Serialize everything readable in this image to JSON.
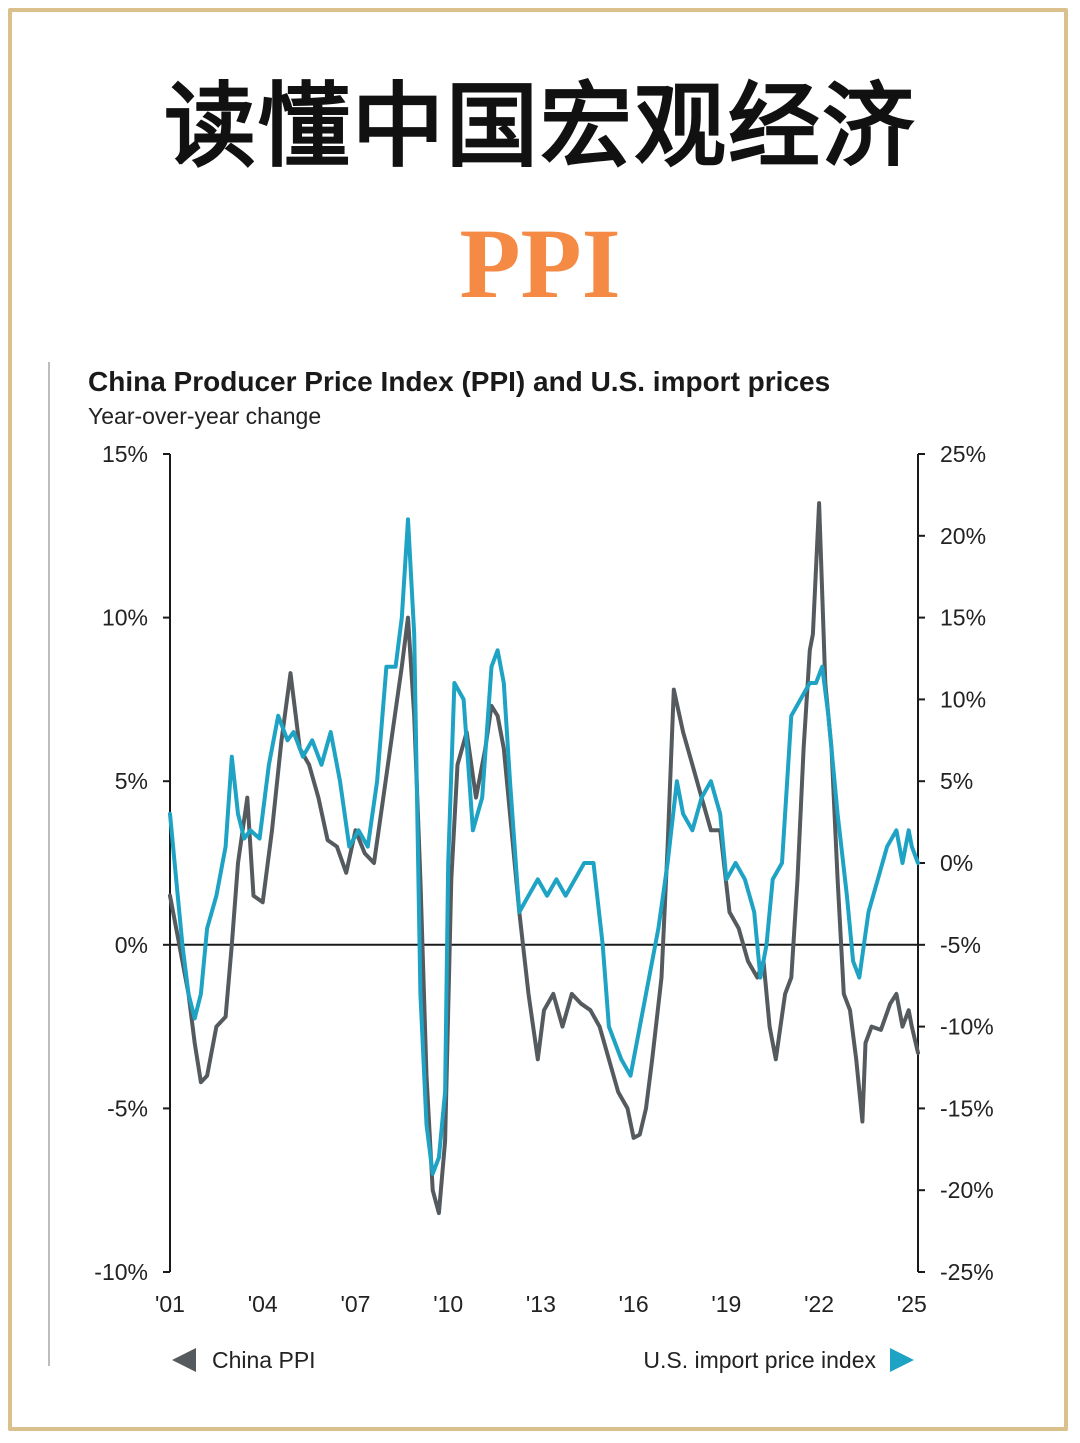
{
  "header": {
    "title": "读懂中国宏观经济",
    "subtitle": "PPI"
  },
  "colors": {
    "frame": "#d9c08c",
    "subtitle": "#f58a45",
    "china_ppi": "#555a5e",
    "us_import": "#1ea3c4"
  },
  "chart_data": {
    "type": "line",
    "title": "China Producer Price Index (PPI) and U.S. import prices",
    "subtitle": "Year-over-year change",
    "x_ticks": [
      "'01",
      "'04",
      "'07",
      "'10",
      "'13",
      "'16",
      "'19",
      "'22",
      "'25"
    ],
    "xlim": [
      2001.0,
      2025.2
    ],
    "left_axis": {
      "ylim": [
        -10,
        15
      ],
      "ticks": [
        "15%",
        "10%",
        "5%",
        "0%",
        "-5%",
        "-10%"
      ],
      "tick_values": [
        15,
        10,
        5,
        0,
        -5,
        -10
      ]
    },
    "right_axis": {
      "ylim": [
        -25,
        25
      ],
      "ticks": [
        "25%",
        "20%",
        "15%",
        "10%",
        "5%",
        "0%",
        "-5%",
        "-10%",
        "-15%",
        "-20%",
        "-25%"
      ],
      "tick_values": [
        25,
        20,
        15,
        10,
        5,
        0,
        -5,
        -10,
        -15,
        -20,
        -25
      ]
    },
    "legend": {
      "left": "China PPI",
      "right": "U.S. import price index"
    },
    "series": [
      {
        "name": "China PPI",
        "axis": "left",
        "x": [
          2001.0,
          2001.3,
          2001.6,
          2001.8,
          2002.0,
          2002.2,
          2002.5,
          2002.8,
          2003.0,
          2003.2,
          2003.5,
          2003.7,
          2004.0,
          2004.3,
          2004.6,
          2004.9,
          2005.2,
          2005.5,
          2005.8,
          2006.1,
          2006.4,
          2006.7,
          2007.0,
          2007.3,
          2007.6,
          2007.9,
          2008.2,
          2008.5,
          2008.7,
          2008.9,
          2009.1,
          2009.3,
          2009.5,
          2009.7,
          2009.9,
          2010.1,
          2010.3,
          2010.6,
          2010.9,
          2011.2,
          2011.4,
          2011.6,
          2011.8,
          2012.0,
          2012.3,
          2012.6,
          2012.9,
          2013.1,
          2013.4,
          2013.7,
          2014.0,
          2014.3,
          2014.6,
          2014.9,
          2015.2,
          2015.5,
          2015.8,
          2016.0,
          2016.2,
          2016.4,
          2016.6,
          2016.9,
          2017.1,
          2017.3,
          2017.6,
          2017.9,
          2018.2,
          2018.5,
          2018.8,
          2019.1,
          2019.4,
          2019.7,
          2020.0,
          2020.2,
          2020.4,
          2020.6,
          2020.9,
          2021.1,
          2021.3,
          2021.5,
          2021.7,
          2021.8,
          2022.0,
          2022.2,
          2022.4,
          2022.6,
          2022.8,
          2023.0,
          2023.2,
          2023.4,
          2023.5,
          2023.7,
          2024.0,
          2024.3,
          2024.5,
          2024.7,
          2024.9,
          2025.0,
          2025.2
        ],
        "values": [
          1.5,
          0.0,
          -1.5,
          -3.0,
          -4.2,
          -4.0,
          -2.5,
          -2.2,
          0.0,
          2.5,
          4.5,
          1.5,
          1.3,
          3.5,
          6.2,
          8.3,
          6.0,
          5.5,
          4.5,
          3.2,
          3.0,
          2.2,
          3.5,
          2.8,
          2.5,
          4.5,
          6.5,
          8.5,
          10.0,
          7.0,
          2.0,
          -4.0,
          -7.5,
          -8.2,
          -6.0,
          2.0,
          5.5,
          6.5,
          4.5,
          6.0,
          7.3,
          7.0,
          6.0,
          4.0,
          1.0,
          -1.5,
          -3.5,
          -2.0,
          -1.5,
          -2.5,
          -1.5,
          -1.8,
          -2.0,
          -2.5,
          -3.5,
          -4.5,
          -5.0,
          -5.9,
          -5.8,
          -5.0,
          -3.5,
          -1.0,
          3.0,
          7.8,
          6.5,
          5.5,
          4.5,
          3.5,
          3.5,
          1.0,
          0.5,
          -0.5,
          -1.0,
          -0.5,
          -2.5,
          -3.5,
          -1.5,
          -1.0,
          2.0,
          6.0,
          9.0,
          9.5,
          13.5,
          8.0,
          6.0,
          2.0,
          -1.5,
          -2.0,
          -3.5,
          -5.4,
          -3.0,
          -2.5,
          -2.6,
          -1.8,
          -1.5,
          -2.5,
          -2.0,
          -2.5,
          -3.3
        ]
      },
      {
        "name": "U.S. import price index",
        "axis": "right",
        "x": [
          2001.0,
          2001.2,
          2001.4,
          2001.6,
          2001.8,
          2002.0,
          2002.2,
          2002.5,
          2002.8,
          2003.0,
          2003.2,
          2003.4,
          2003.6,
          2003.9,
          2004.2,
          2004.5,
          2004.8,
          2005.0,
          2005.3,
          2005.6,
          2005.9,
          2006.2,
          2006.5,
          2006.8,
          2007.1,
          2007.4,
          2007.7,
          2008.0,
          2008.3,
          2008.5,
          2008.7,
          2008.9,
          2009.1,
          2009.3,
          2009.5,
          2009.7,
          2009.9,
          2010.0,
          2010.2,
          2010.5,
          2010.8,
          2011.1,
          2011.4,
          2011.6,
          2011.8,
          2012.0,
          2012.3,
          2012.6,
          2012.9,
          2013.2,
          2013.5,
          2013.8,
          2014.1,
          2014.4,
          2014.7,
          2015.0,
          2015.2,
          2015.4,
          2015.6,
          2015.9,
          2016.2,
          2016.5,
          2016.8,
          2017.1,
          2017.4,
          2017.6,
          2017.9,
          2018.2,
          2018.5,
          2018.8,
          2019.0,
          2019.3,
          2019.6,
          2019.9,
          2020.1,
          2020.3,
          2020.5,
          2020.8,
          2021.1,
          2021.4,
          2021.7,
          2021.9,
          2022.1,
          2022.3,
          2022.6,
          2022.9,
          2023.1,
          2023.3,
          2023.6,
          2023.9,
          2024.2,
          2024.5,
          2024.7,
          2024.9,
          2025.0,
          2025.2
        ],
        "values": [
          3,
          -1,
          -5,
          -8,
          -9.5,
          -8,
          -4,
          -2,
          1,
          6.5,
          3,
          1.5,
          2.0,
          1.5,
          6,
          9,
          7.5,
          8.0,
          6.5,
          7.5,
          6,
          8,
          5,
          1,
          2,
          1,
          5,
          12,
          12,
          15,
          21,
          14,
          -8,
          -16,
          -19,
          -18,
          -14,
          0,
          11,
          10,
          2,
          4,
          12,
          13,
          11,
          5,
          -3,
          -2,
          -1,
          -2,
          -1,
          -2,
          -1,
          0,
          0,
          -5,
          -10,
          -11,
          -12,
          -13,
          -10,
          -7,
          -4,
          0,
          5,
          3,
          2,
          4,
          5,
          3,
          -1,
          0,
          -1,
          -3,
          -7,
          -5,
          -1,
          0,
          9,
          10,
          11,
          11,
          12,
          9,
          3,
          -2,
          -6,
          -7,
          -3,
          -1,
          1,
          2,
          0,
          2,
          1,
          0
        ]
      }
    ]
  }
}
